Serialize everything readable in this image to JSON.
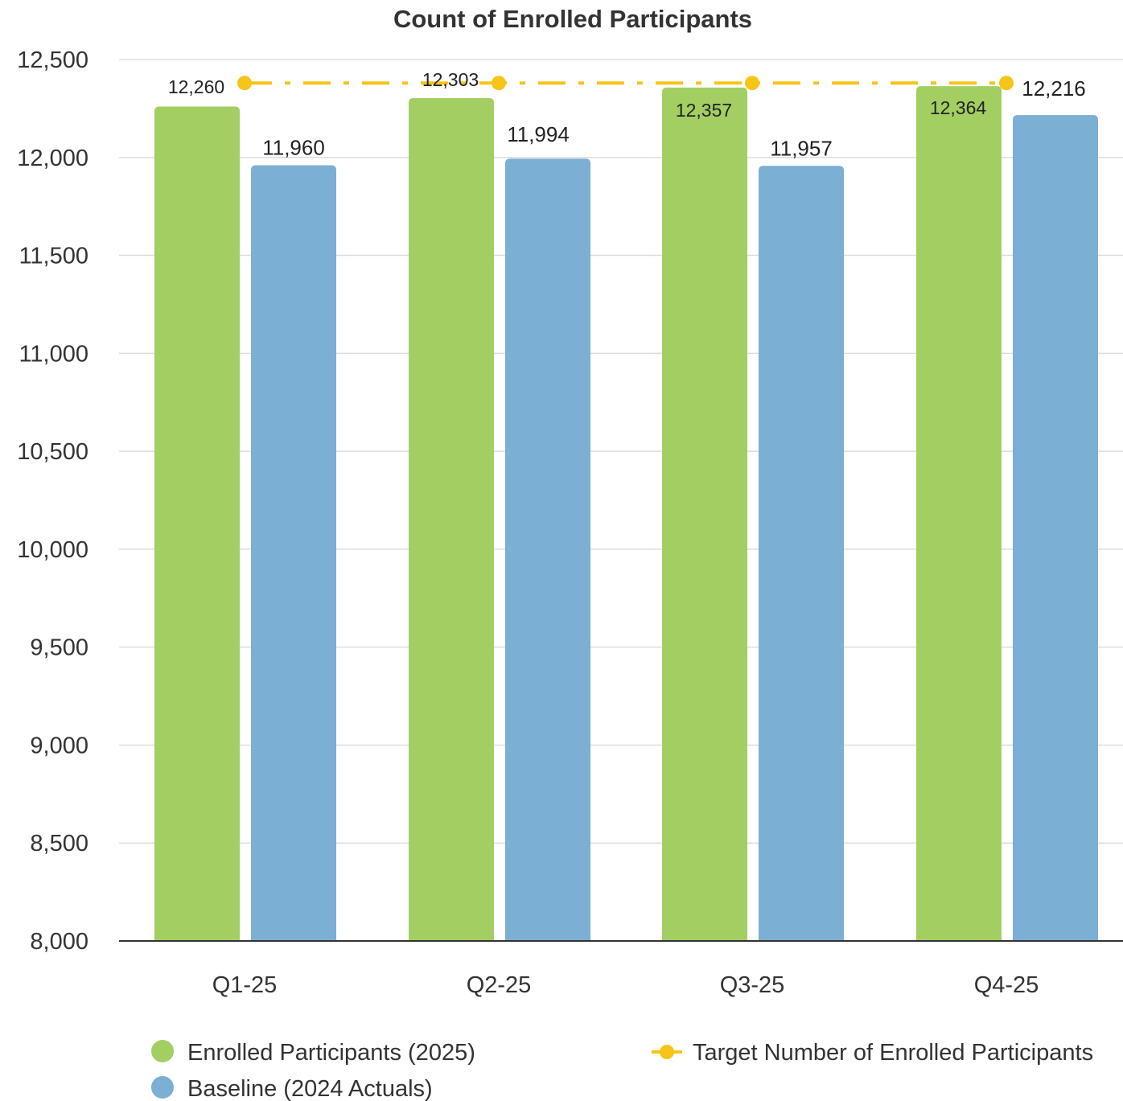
{
  "chart_data": {
    "type": "bar",
    "title": "Count of Enrolled Participants",
    "categories": [
      "Q1-25",
      "Q2-25",
      "Q3-25",
      "Q4-25"
    ],
    "ylim": [
      8000,
      12500
    ],
    "yticks": [
      "8,000",
      "8,500",
      "9,000",
      "9,500",
      "10,000",
      "10,500",
      "11,000",
      "11,500",
      "12,000",
      "12,500"
    ],
    "ytick_values": [
      8000,
      8500,
      9000,
      9500,
      10000,
      10500,
      11000,
      11500,
      12000,
      12500
    ],
    "grid": true,
    "legend_position": "bottom",
    "series": [
      {
        "name": "Enrolled Participants (2025)",
        "type": "bar",
        "color": "#a3cf62",
        "values": [
          12260,
          12303,
          12357,
          12364
        ],
        "labels": [
          "12,260",
          "12,303",
          "12,357",
          "12,364"
        ]
      },
      {
        "name": "Baseline (2024 Actuals)",
        "type": "bar",
        "color": "#7bafd4",
        "values": [
          11960,
          11994,
          11957,
          12216
        ],
        "labels": [
          "11,960",
          "11,994",
          "11,957",
          "12,216"
        ]
      },
      {
        "name": "Target Number of Enrolled Participants",
        "type": "line",
        "style": "dash-dot",
        "color": "#f5c518",
        "values": [
          12380,
          12380,
          12380,
          12380
        ]
      }
    ]
  }
}
